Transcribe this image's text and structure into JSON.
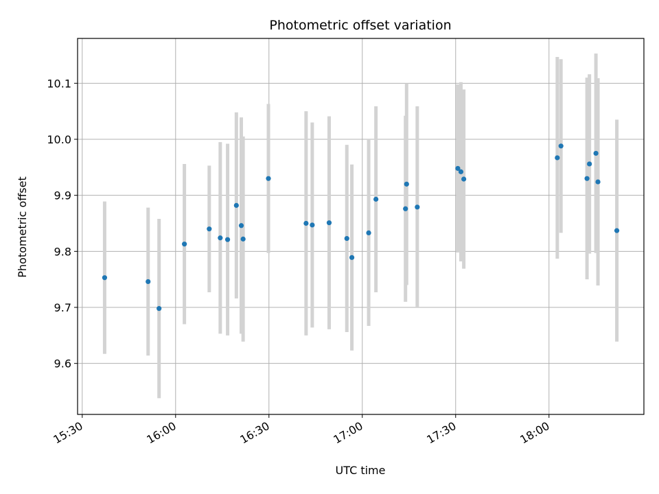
{
  "chart_data": {
    "type": "scatter",
    "title": "Photometric offset variation",
    "xlabel": "UTC time",
    "ylabel": "Photometric offset",
    "grid": true,
    "x_tick_labels": [
      "15:30",
      "16:00",
      "16:30",
      "17:00",
      "17:30",
      "18:00"
    ],
    "y_tick_labels": [
      "9.6",
      "9.7",
      "9.8",
      "9.9",
      "10.0",
      "10.1"
    ],
    "y_ticks": [
      9.6,
      9.7,
      9.8,
      9.9,
      10.0,
      10.1
    ],
    "xlim": [
      "15:28:30",
      "18:30:30"
    ],
    "ylim": [
      9.509,
      10.18
    ],
    "colors": {
      "points": "#1f77b4",
      "errorbars": "#d3d3d3",
      "grid": "#b0b0b0"
    },
    "points": [
      {
        "x": "15:37:12",
        "y": 9.753,
        "yerr": 0.136
      },
      {
        "x": "15:51:10",
        "y": 9.746,
        "yerr": 0.132
      },
      {
        "x": "15:54:41",
        "y": 9.698,
        "yerr": 0.16
      },
      {
        "x": "16:02:50",
        "y": 9.813,
        "yerr": 0.143
      },
      {
        "x": "16:10:49",
        "y": 9.84,
        "yerr": 0.113
      },
      {
        "x": "16:14:21",
        "y": 9.824,
        "yerr": 0.171
      },
      {
        "x": "16:16:43",
        "y": 9.821,
        "yerr": 0.171
      },
      {
        "x": "16:19:32",
        "y": 9.882,
        "yerr": 0.166
      },
      {
        "x": "16:21:07",
        "y": 9.846,
        "yerr": 0.193
      },
      {
        "x": "16:21:42",
        "y": 9.822,
        "yerr": 0.183
      },
      {
        "x": "16:29:50",
        "y": 9.93,
        "yerr": 0.133
      },
      {
        "x": "16:41:56",
        "y": 9.85,
        "yerr": 0.2
      },
      {
        "x": "16:43:55",
        "y": 9.847,
        "yerr": 0.183
      },
      {
        "x": "16:49:21",
        "y": 9.851,
        "yerr": 0.19
      },
      {
        "x": "16:55:02",
        "y": 9.823,
        "yerr": 0.167
      },
      {
        "x": "16:56:39",
        "y": 9.789,
        "yerr": 0.166
      },
      {
        "x": "17:02:03",
        "y": 9.833,
        "yerr": 0.166
      },
      {
        "x": "17:04:23",
        "y": 9.893,
        "yerr": 0.166
      },
      {
        "x": "17:13:53",
        "y": 9.876,
        "yerr": 0.166
      },
      {
        "x": "17:14:14",
        "y": 9.92,
        "yerr": 0.18
      },
      {
        "x": "17:17:40",
        "y": 9.879,
        "yerr": 0.18
      },
      {
        "x": "17:30:42",
        "y": 9.948,
        "yerr": 0.15
      },
      {
        "x": "17:31:42",
        "y": 9.942,
        "yerr": 0.16
      },
      {
        "x": "17:32:37",
        "y": 9.929,
        "yerr": 0.16
      },
      {
        "x": "18:02:40",
        "y": 9.967,
        "yerr": 0.18
      },
      {
        "x": "18:03:51",
        "y": 9.988,
        "yerr": 0.155
      },
      {
        "x": "18:12:13",
        "y": 9.93,
        "yerr": 0.18
      },
      {
        "x": "18:13:00",
        "y": 9.956,
        "yerr": 0.16
      },
      {
        "x": "18:15:05",
        "y": 9.975,
        "yerr": 0.178
      },
      {
        "x": "18:15:44",
        "y": 9.924,
        "yerr": 0.185
      },
      {
        "x": "18:21:48",
        "y": 9.837,
        "yerr": 0.198
      }
    ]
  }
}
